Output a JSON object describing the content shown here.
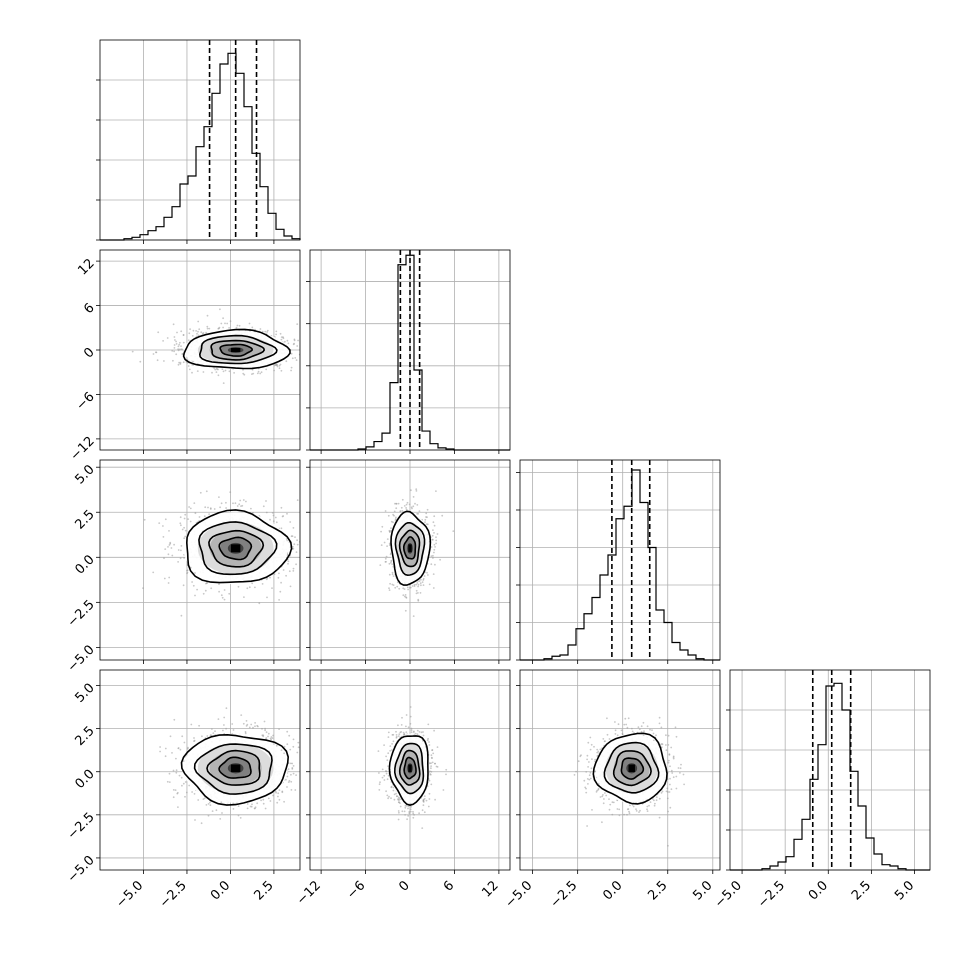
{
  "chart_data": {
    "type": "corner",
    "dims": 4,
    "axes": [
      {
        "range": [
          -7.5,
          4.0
        ],
        "ticks": [
          -5.0,
          -2.5,
          0.0,
          2.5
        ],
        "tick_labels": [
          "−5.0",
          "−2.5",
          "0.0",
          "2.5"
        ],
        "mean": 0.3,
        "sd": 1.5
      },
      {
        "range": [
          -13.5,
          13.5
        ],
        "ticks": [
          -12,
          -6,
          0,
          6,
          12
        ],
        "tick_labels": [
          "−12",
          "−6",
          "0",
          "6",
          "12"
        ],
        "mean": 0.0,
        "sd": 1.3
      },
      {
        "range": [
          -5.7,
          5.4
        ],
        "ticks": [
          -5.0,
          -2.5,
          0.0,
          2.5,
          5.0
        ],
        "tick_labels": [
          "−5.0",
          "−2.5",
          "0.0",
          "2.5",
          "5.0"
        ],
        "mean": 0.5,
        "sd": 1.0
      },
      {
        "range": [
          -5.7,
          5.9
        ],
        "ticks": [
          -5.0,
          -2.5,
          0.0,
          2.5,
          5.0
        ],
        "tick_labels": [
          "−5.0",
          "−2.5",
          "0.0",
          "2.5",
          "5.0"
        ],
        "mean": 0.2,
        "sd": 1.0
      }
    ],
    "diagonal": [
      {
        "bins": [
          -7.5,
          -7.04,
          -6.58,
          -6.12,
          -5.66,
          -5.2,
          -4.74,
          -4.28,
          -3.82,
          -3.36,
          -2.9,
          -2.44,
          -1.98,
          -1.52,
          -1.06,
          -0.6,
          -0.14,
          0.32,
          0.78,
          1.24,
          1.7,
          2.16,
          2.62,
          3.08,
          3.54,
          4.0
        ],
        "counts": [
          0,
          0,
          0,
          1,
          2,
          4,
          7,
          10,
          17,
          25,
          42,
          48,
          70,
          85,
          110,
          132,
          140,
          125,
          100,
          65,
          40,
          20,
          8,
          3,
          1
        ],
        "quantiles": [
          -1.2,
          0.3,
          1.5
        ],
        "ymax": 150,
        "yticks": [
          0,
          30,
          60,
          90,
          120
        ]
      },
      {
        "bins": [
          -13.5,
          -12.42,
          -11.34,
          -10.26,
          -9.18,
          -8.1,
          -7.02,
          -5.94,
          -4.86,
          -3.78,
          -2.7,
          -1.62,
          -0.54,
          0.54,
          1.62,
          2.7,
          3.78,
          4.86,
          5.94,
          7.02,
          8.1,
          9.18,
          10.26,
          11.34,
          12.42,
          13.5
        ],
        "counts": [
          0,
          0,
          0,
          0,
          0,
          0,
          1,
          3,
          8,
          16,
          64,
          176,
          185,
          76,
          18,
          6,
          2,
          1,
          0,
          0,
          0,
          0,
          0,
          0,
          0
        ],
        "quantiles": [
          -1.3,
          0.0,
          1.3
        ],
        "ymax": 190,
        "yticks": [
          0,
          40,
          80,
          120,
          160
        ]
      },
      {
        "bins": [
          -5.7,
          -5.256,
          -4.812,
          -4.368,
          -3.924,
          -3.48,
          -3.036,
          -2.592,
          -2.148,
          -1.704,
          -1.26,
          -0.816,
          -0.372,
          0.072,
          0.516,
          0.96,
          1.404,
          1.848,
          2.292,
          2.736,
          3.18,
          3.624,
          4.068,
          4.512,
          4.956,
          5.4
        ],
        "counts": [
          0,
          0,
          0,
          1,
          3,
          4,
          12,
          25,
          37,
          50,
          68,
          84,
          113,
          123,
          152,
          126,
          90,
          40,
          30,
          14,
          8,
          4,
          1,
          0,
          0
        ],
        "quantiles": [
          -0.6,
          0.5,
          1.5
        ],
        "ymax": 160,
        "yticks": [
          0,
          30,
          60,
          90,
          120,
          150
        ]
      },
      {
        "bins": [
          -5.7,
          -5.236,
          -4.772,
          -4.308,
          -3.844,
          -3.38,
          -2.916,
          -2.452,
          -1.988,
          -1.524,
          -1.06,
          -0.596,
          -0.132,
          0.332,
          0.796,
          1.26,
          1.724,
          2.188,
          2.652,
          3.116,
          3.58,
          4.044,
          4.508,
          4.972,
          5.436,
          5.9
        ],
        "counts": [
          0,
          0,
          0,
          0,
          1,
          3,
          6,
          10,
          23,
          38,
          68,
          94,
          138,
          140,
          120,
          74,
          48,
          24,
          12,
          4,
          3,
          1,
          0,
          0,
          0
        ],
        "quantiles": [
          -0.9,
          0.2,
          1.3
        ],
        "ymax": 150,
        "yticks": [
          0,
          30,
          60,
          90,
          120
        ]
      }
    ],
    "pairs": [
      {
        "row": 1,
        "col": 0,
        "center": [
          0.3,
          0.0
        ],
        "sd": [
          1.5,
          1.3
        ]
      },
      {
        "row": 2,
        "col": 0,
        "center": [
          0.3,
          0.5
        ],
        "sd": [
          1.5,
          1.0
        ]
      },
      {
        "row": 2,
        "col": 1,
        "center": [
          0.0,
          0.5
        ],
        "sd": [
          1.3,
          1.0
        ]
      },
      {
        "row": 3,
        "col": 0,
        "center": [
          0.3,
          0.2
        ],
        "sd": [
          1.5,
          1.0
        ]
      },
      {
        "row": 3,
        "col": 1,
        "center": [
          0.0,
          0.2
        ],
        "sd": [
          1.3,
          1.0
        ]
      },
      {
        "row": 3,
        "col": 2,
        "center": [
          0.5,
          0.2
        ],
        "sd": [
          1.0,
          1.0
        ]
      }
    ],
    "grid": true,
    "legend": "none",
    "colors": {
      "frame": "#000000",
      "grid": "#b0b0b0",
      "scatter": "#9a9a9a",
      "density": "#000000"
    }
  }
}
